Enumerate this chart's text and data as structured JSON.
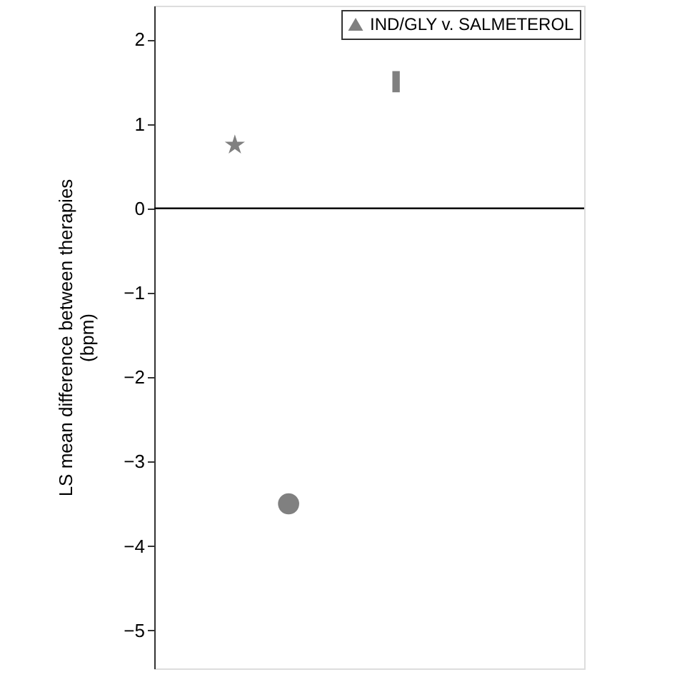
{
  "chart_data": {
    "type": "scatter",
    "ylabel": "LS mean difference between therapies\n(bpm)",
    "categories": [
      null,
      null,
      null,
      null,
      null,
      null,
      null,
      null
    ],
    "series": [
      {
        "name": "IND/GLY v. SALMETEROL",
        "color": "#808080",
        "marker": "triangle",
        "values": [
          null,
          null,
          null,
          null,
          null,
          null,
          null,
          null
        ]
      },
      {
        "color": "#808080",
        "marker": "star",
        "values": [
          null,
          0.75,
          null,
          null,
          null,
          null,
          null,
          null
        ]
      },
      {
        "color": "#808080",
        "marker": "circle",
        "values": [
          null,
          null,
          -3.5,
          null,
          null,
          null,
          null,
          null
        ]
      },
      {
        "color": "#808080",
        "marker": "square",
        "values": [
          null,
          null,
          null,
          null,
          1.5,
          null,
          null,
          null
        ]
      }
    ],
    "ylim": [
      -5.45,
      2.4
    ],
    "yticks": [
      -5,
      -4,
      -3,
      -2,
      -1,
      0,
      1,
      2
    ],
    "ref_lines": [
      {
        "axis": "y",
        "value": 0,
        "color": "#000000"
      }
    ],
    "grid": false,
    "legend": "top right",
    "tick_labels": "y"
  }
}
